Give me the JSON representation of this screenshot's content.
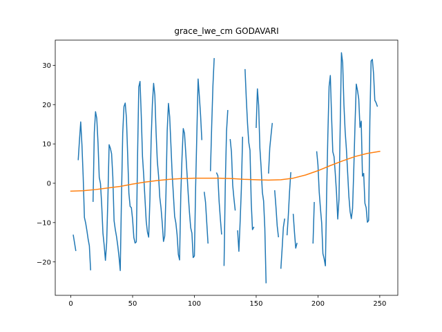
{
  "chart_data": {
    "type": "line",
    "title": "grace_lwe_cm GODAVARI",
    "xlabel": "",
    "ylabel": "",
    "xlim": [
      -12.6,
      264.6
    ],
    "ylim": [
      -28.5,
      36.4
    ],
    "xticks": [
      0,
      50,
      100,
      150,
      200,
      250
    ],
    "yticks": [
      -20,
      -10,
      0,
      10,
      20,
      30
    ],
    "grid": false,
    "legend": "none",
    "series": [
      {
        "color": "#1f77b4",
        "segments": [
          [
            [
              2,
              -13.2
            ],
            [
              4,
              -17.1
            ]
          ],
          [
            [
              6,
              6
            ],
            [
              7,
              11
            ],
            [
              8,
              15.6
            ],
            [
              9,
              9.8
            ],
            [
              10,
              1.7
            ],
            [
              11,
              -8.7
            ],
            [
              12,
              -10.1
            ],
            [
              13,
              -12
            ],
            [
              14,
              -14.2
            ],
            [
              15,
              -15.9
            ],
            [
              16,
              -22
            ]
          ],
          [
            [
              18,
              -4.6
            ],
            [
              19,
              12.9
            ],
            [
              20,
              18.2
            ],
            [
              21,
              16.5
            ],
            [
              22,
              10.3
            ],
            [
              23,
              1.5
            ],
            [
              24,
              -0.1
            ],
            [
              25,
              -5.6
            ],
            [
              26,
              -12.7
            ],
            [
              27,
              -15.8
            ],
            [
              28,
              -19.6
            ],
            [
              29,
              -15.1
            ],
            [
              30,
              -3.7
            ],
            [
              31,
              9.8
            ],
            [
              32,
              8.9
            ],
            [
              33,
              7.5
            ],
            [
              34,
              1.6
            ],
            [
              35,
              -9.5
            ],
            [
              36,
              -11.8
            ],
            [
              37,
              -13.6
            ],
            [
              38,
              -15.9
            ],
            [
              39,
              -18.7
            ],
            [
              40,
              -22.2
            ],
            [
              41,
              -3.4
            ],
            [
              42,
              12.7
            ],
            [
              43,
              19.5
            ],
            [
              44,
              20.4
            ],
            [
              45,
              16.6
            ],
            [
              46,
              7.3
            ],
            [
              47,
              -2.6
            ],
            [
              48,
              -5.9
            ],
            [
              49,
              -6.2
            ],
            [
              50,
              -9.2
            ],
            [
              51,
              -13.8
            ],
            [
              52,
              -15.2
            ],
            [
              53,
              -14.9
            ],
            [
              54,
              6.8
            ],
            [
              55,
              24.5
            ],
            [
              56,
              25.9
            ],
            [
              57,
              17.3
            ],
            [
              58,
              6.8
            ],
            [
              59,
              1.9
            ],
            [
              60,
              -3.9
            ],
            [
              61,
              -9.6
            ],
            [
              62,
              -12.4
            ],
            [
              63,
              -13.7
            ],
            [
              64,
              -4.2
            ],
            [
              65,
              11.1
            ],
            [
              66,
              20.1
            ],
            [
              67,
              25.4
            ],
            [
              68,
              22.4
            ],
            [
              69,
              12.9
            ],
            [
              70,
              5.6
            ],
            [
              71,
              1.9
            ],
            [
              72,
              -3.6
            ],
            [
              73,
              -6.3
            ],
            [
              74,
              -10.2
            ],
            [
              75,
              -14.8
            ],
            [
              76,
              -13.4
            ],
            [
              77,
              -2.6
            ],
            [
              78,
              13.4
            ],
            [
              79,
              20.3
            ],
            [
              80,
              16.9
            ],
            [
              81,
              9.8
            ],
            [
              82,
              2.4
            ],
            [
              83,
              -2.9
            ],
            [
              84,
              -8.4
            ],
            [
              85,
              -10.1
            ],
            [
              86,
              -13.1
            ],
            [
              87,
              -18.1
            ],
            [
              88,
              -19.5
            ],
            [
              89,
              -2.8
            ],
            [
              90,
              6.7
            ],
            [
              91,
              13.9
            ],
            [
              92,
              12.7
            ],
            [
              93,
              7.8
            ],
            [
              94,
              2.6
            ],
            [
              95,
              -2.7
            ],
            [
              96,
              -7.4
            ],
            [
              97,
              -11.3
            ],
            [
              98,
              -12.7
            ],
            [
              99,
              -18.9
            ],
            [
              100,
              -18.5
            ],
            [
              101,
              -1
            ],
            [
              102,
              12.8
            ],
            [
              103,
              26.5
            ],
            [
              104,
              22.2
            ],
            [
              105,
              17.3
            ],
            [
              106,
              11.1
            ]
          ],
          [
            [
              108,
              -2.3
            ],
            [
              109,
              -4.8
            ],
            [
              110,
              -10
            ],
            [
              111,
              -15.2
            ]
          ],
          [
            [
              113,
              3.2
            ],
            [
              114,
              14.6
            ],
            [
              115,
              24.8
            ],
            [
              116,
              31.7
            ]
          ],
          [
            [
              118,
              2.6
            ],
            [
              119,
              1.9
            ],
            [
              120,
              -4.6
            ],
            [
              121,
              -9
            ],
            [
              122,
              -12.9
            ]
          ],
          [
            [
              124,
              -20.9
            ],
            [
              125,
              -0.4
            ],
            [
              126,
              13.2
            ],
            [
              127,
              18.5
            ]
          ],
          [
            [
              129,
              11.1
            ],
            [
              130,
              7.9
            ],
            [
              131,
              -0.5
            ],
            [
              132,
              -3.9
            ],
            [
              133,
              -6.8
            ]
          ],
          [
            [
              135,
              -12.1
            ],
            [
              136,
              -17.3
            ],
            [
              137,
              -9.9
            ],
            [
              138,
              -1.4
            ],
            [
              139,
              11.7
            ]
          ],
          [
            [
              141,
              28.9
            ],
            [
              142,
              21.5
            ],
            [
              143,
              15.2
            ],
            [
              144,
              10.4
            ],
            [
              145,
              8.4
            ],
            [
              146,
              -4.9
            ],
            [
              147,
              -11.8
            ],
            [
              148,
              -11.2
            ]
          ],
          [
            [
              150,
              14.2
            ],
            [
              151,
              24
            ],
            [
              152,
              19.8
            ],
            [
              153,
              8.9
            ],
            [
              154,
              4
            ],
            [
              155,
              -2.3
            ],
            [
              156,
              -4.5
            ],
            [
              157,
              -11.5
            ],
            [
              158,
              -25.3
            ]
          ],
          [
            [
              160,
              2.6
            ],
            [
              161,
              9
            ],
            [
              162,
              12.2
            ],
            [
              163,
              15.2
            ]
          ],
          [
            [
              165,
              -1.9
            ],
            [
              166,
              -6
            ],
            [
              167,
              -10.8
            ],
            [
              168,
              -13.6
            ]
          ],
          [
            [
              170,
              -21.6
            ],
            [
              171,
              -16.6
            ],
            [
              172,
              -11.2
            ],
            [
              173,
              -9.1
            ]
          ],
          [
            [
              175,
              -13.1
            ],
            [
              176,
              -8.2
            ],
            [
              177,
              -2.1
            ],
            [
              178,
              2.7
            ]
          ],
          [
            [
              180,
              -7.9
            ],
            [
              181,
              -12.5
            ],
            [
              182,
              -16.5
            ],
            [
              183,
              -15.3
            ]
          ],
          [
            [
              196,
              -15.2
            ],
            [
              197,
              -4.9
            ]
          ],
          [
            [
              199,
              8
            ],
            [
              200,
              4.6
            ],
            [
              201,
              -2.2
            ],
            [
              202,
              -6.4
            ],
            [
              203,
              -10.1
            ],
            [
              204,
              -17.9
            ],
            [
              205,
              -19.2
            ],
            [
              206,
              -21
            ],
            [
              207,
              -2.8
            ],
            [
              208,
              12.2
            ],
            [
              209,
              24.6
            ],
            [
              210,
              27.4
            ],
            [
              211,
              17.1
            ],
            [
              212,
              8
            ],
            [
              213,
              6.8
            ],
            [
              214,
              2.5
            ],
            [
              215,
              -2.4
            ],
            [
              216,
              -9.1
            ],
            [
              217,
              -4.1
            ],
            [
              218,
              14.7
            ],
            [
              219,
              33.2
            ],
            [
              220,
              30.6
            ],
            [
              221,
              20
            ],
            [
              222,
              13.2
            ],
            [
              223,
              8.7
            ],
            [
              224,
              2.8
            ],
            [
              225,
              -3.3
            ],
            [
              226,
              -7.2
            ],
            [
              227,
              -9
            ],
            [
              228,
              -6.4
            ],
            [
              229,
              3.7
            ],
            [
              230,
              15.1
            ],
            [
              231,
              25.2
            ],
            [
              232,
              23.6
            ],
            [
              233,
              21.4
            ],
            [
              234,
              14.2
            ],
            [
              235,
              15.8
            ],
            [
              236,
              1.8
            ],
            [
              237,
              2.5
            ],
            [
              238,
              -5.1
            ],
            [
              239,
              -6.2
            ],
            [
              240,
              -9.9
            ],
            [
              241,
              -9.5
            ],
            [
              242,
              16
            ],
            [
              243,
              31.1
            ],
            [
              244,
              31.5
            ],
            [
              245,
              27.8
            ],
            [
              246,
              21.1
            ],
            [
              247,
              20.5
            ],
            [
              248,
              19.6
            ]
          ]
        ]
      },
      {
        "color": "#ff7f0e",
        "segments": [
          [
            [
              0,
              -2
            ],
            [
              10,
              -1.9
            ],
            [
              20,
              -1.6
            ],
            [
              30,
              -1.2
            ],
            [
              40,
              -0.8
            ],
            [
              50,
              -0.2
            ],
            [
              60,
              0.3
            ],
            [
              70,
              0.7
            ],
            [
              80,
              1
            ],
            [
              90,
              1.2
            ],
            [
              100,
              1.3
            ],
            [
              110,
              1.3
            ],
            [
              120,
              1.3
            ],
            [
              130,
              1.2
            ],
            [
              140,
              1
            ],
            [
              150,
              0.9
            ],
            [
              160,
              0.8
            ],
            [
              170,
              0.9
            ],
            [
              180,
              1.3
            ],
            [
              190,
              2.1
            ],
            [
              200,
              3.2
            ],
            [
              210,
              4.5
            ],
            [
              220,
              5.7
            ],
            [
              230,
              6.8
            ],
            [
              240,
              7.6
            ],
            [
              250,
              8.1
            ]
          ]
        ]
      }
    ]
  }
}
